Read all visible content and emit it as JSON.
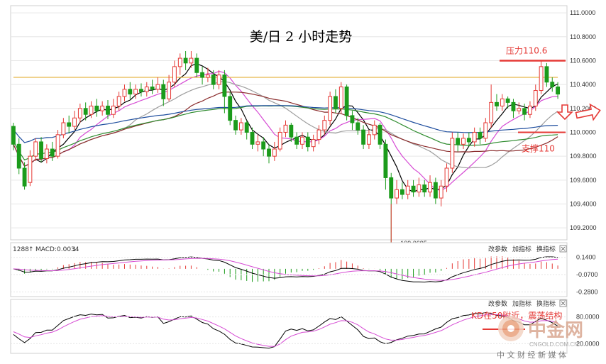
{
  "chart_data": [
    {
      "type": "candlestick",
      "title": "美/日 2 小时走势",
      "y_ticks": [
        "111.0000",
        "110.8000",
        "110.6000",
        "110.4000",
        "110.2000",
        "110.0000",
        "109.8000",
        "109.6000",
        "109.4000",
        "109.2000"
      ],
      "ylim": [
        109.1,
        111.06
      ],
      "low_label": "109.0695",
      "annotations": {
        "resistance": {
          "text": "压力110.6",
          "value": 110.6,
          "color": "#e53935"
        },
        "support": {
          "text": "支撑110",
          "value": 110.0,
          "color": "#e53935"
        }
      },
      "candles": [
        [
          110.05,
          109.9,
          110.08,
          109.85
        ],
        [
          109.9,
          109.7,
          109.95,
          109.65
        ],
        [
          109.7,
          109.55,
          109.75,
          109.52
        ],
        [
          109.58,
          109.8,
          109.85,
          109.55
        ],
        [
          109.8,
          109.92,
          109.95,
          109.76
        ],
        [
          109.92,
          109.78,
          109.96,
          109.75
        ],
        [
          109.78,
          109.86,
          109.9,
          109.74
        ],
        [
          109.86,
          109.8,
          109.92,
          109.76
        ],
        [
          109.8,
          109.98,
          110.02,
          109.78
        ],
        [
          109.98,
          110.08,
          110.12,
          109.95
        ],
        [
          110.08,
          110.05,
          110.14,
          109.99
        ],
        [
          110.05,
          110.12,
          110.18,
          110.02
        ],
        [
          110.12,
          110.2,
          110.24,
          110.08
        ],
        [
          110.2,
          110.15,
          110.25,
          110.1
        ],
        [
          110.15,
          110.22,
          110.26,
          110.12
        ],
        [
          110.22,
          110.18,
          110.28,
          110.13
        ],
        [
          110.18,
          110.22,
          110.26,
          110.14
        ],
        [
          110.22,
          110.15,
          110.27,
          110.11
        ],
        [
          110.15,
          110.22,
          110.28,
          110.12
        ],
        [
          110.22,
          110.3,
          110.34,
          110.18
        ],
        [
          110.3,
          110.36,
          110.4,
          110.26
        ],
        [
          110.36,
          110.32,
          110.42,
          110.28
        ],
        [
          110.32,
          110.36,
          110.4,
          110.28
        ],
        [
          110.36,
          110.34,
          110.41,
          110.3
        ],
        [
          110.34,
          110.38,
          110.42,
          110.3
        ],
        [
          110.38,
          110.36,
          110.44,
          110.32
        ],
        [
          110.36,
          110.4,
          110.46,
          110.33
        ],
        [
          110.4,
          110.28,
          110.44,
          110.22
        ],
        [
          110.28,
          110.42,
          110.48,
          110.26
        ],
        [
          110.42,
          110.55,
          110.6,
          110.38
        ],
        [
          110.55,
          110.62,
          110.66,
          110.48
        ],
        [
          110.62,
          110.58,
          110.68,
          110.52
        ],
        [
          110.58,
          110.62,
          110.68,
          110.54
        ],
        [
          110.62,
          110.5,
          110.66,
          110.46
        ],
        [
          110.5,
          110.46,
          110.55,
          110.4
        ],
        [
          110.46,
          110.48,
          110.54,
          110.42
        ],
        [
          110.48,
          110.4,
          110.52,
          110.36
        ],
        [
          110.4,
          110.48,
          110.52,
          110.36
        ],
        [
          110.48,
          110.3,
          110.52,
          110.16
        ],
        [
          110.3,
          110.1,
          110.34,
          110.06
        ],
        [
          110.1,
          110.02,
          110.14,
          109.98
        ],
        [
          110.02,
          110.08,
          110.12,
          109.98
        ],
        [
          110.08,
          110.0,
          110.1,
          109.94
        ],
        [
          110.0,
          109.9,
          110.04,
          109.86
        ],
        [
          109.9,
          109.92,
          109.98,
          109.84
        ],
        [
          109.92,
          109.86,
          109.96,
          109.8
        ],
        [
          109.86,
          109.8,
          109.9,
          109.74
        ],
        [
          109.8,
          109.86,
          109.92,
          109.76
        ],
        [
          109.86,
          110.0,
          110.04,
          109.84
        ],
        [
          110.0,
          110.06,
          110.1,
          109.96
        ],
        [
          110.06,
          109.96,
          110.08,
          109.92
        ],
        [
          109.96,
          109.9,
          110.0,
          109.86
        ],
        [
          109.9,
          109.96,
          110.0,
          109.86
        ],
        [
          109.96,
          109.88,
          110.0,
          109.84
        ],
        [
          109.88,
          109.94,
          109.98,
          109.84
        ],
        [
          109.94,
          110.02,
          110.06,
          109.9
        ],
        [
          110.02,
          110.1,
          110.14,
          109.98
        ],
        [
          110.1,
          110.3,
          110.34,
          110.06
        ],
        [
          110.3,
          110.2,
          110.36,
          110.16
        ],
        [
          110.2,
          110.38,
          110.42,
          110.16
        ],
        [
          110.38,
          110.14,
          110.4,
          110.1
        ],
        [
          110.14,
          110.08,
          110.18,
          110.02
        ],
        [
          110.08,
          110.02,
          110.12,
          109.98
        ],
        [
          110.02,
          109.9,
          110.06,
          109.86
        ],
        [
          109.9,
          109.98,
          110.02,
          109.86
        ],
        [
          109.98,
          110.06,
          110.1,
          109.94
        ],
        [
          110.06,
          109.9,
          110.08,
          109.86
        ],
        [
          109.9,
          109.62,
          109.94,
          109.52
        ],
        [
          109.62,
          109.45,
          109.66,
          109.07
        ],
        [
          109.45,
          109.52,
          109.6,
          109.4
        ],
        [
          109.52,
          109.48,
          109.58,
          109.44
        ],
        [
          109.48,
          109.55,
          109.6,
          109.44
        ],
        [
          109.55,
          109.5,
          109.6,
          109.46
        ],
        [
          109.5,
          109.56,
          109.62,
          109.46
        ],
        [
          109.56,
          109.5,
          109.6,
          109.46
        ],
        [
          109.5,
          109.58,
          109.64,
          109.46
        ],
        [
          109.58,
          109.45,
          109.62,
          109.4
        ],
        [
          109.45,
          109.55,
          109.6,
          109.38
        ],
        [
          109.55,
          109.7,
          109.74,
          109.5
        ],
        [
          109.7,
          109.95,
          110.0,
          109.66
        ],
        [
          109.95,
          109.9,
          110.0,
          109.84
        ],
        [
          109.9,
          109.95,
          109.99,
          109.86
        ],
        [
          109.95,
          109.92,
          110.0,
          109.88
        ],
        [
          109.92,
          110.0,
          110.04,
          109.88
        ],
        [
          110.0,
          109.95,
          110.04,
          109.9
        ],
        [
          109.95,
          110.08,
          110.12,
          109.92
        ],
        [
          110.08,
          110.25,
          110.4,
          110.04
        ],
        [
          110.25,
          110.22,
          110.32,
          110.18
        ],
        [
          110.22,
          110.28,
          110.32,
          110.18
        ],
        [
          110.28,
          110.25,
          110.3,
          110.2
        ],
        [
          110.25,
          110.18,
          110.28,
          110.12
        ],
        [
          110.18,
          110.2,
          110.25,
          110.15
        ],
        [
          110.2,
          110.15,
          110.24,
          110.1
        ],
        [
          110.15,
          110.22,
          110.26,
          110.12
        ],
        [
          110.22,
          110.35,
          110.4,
          110.18
        ],
        [
          110.35,
          110.55,
          110.6,
          110.32
        ],
        [
          110.55,
          110.42,
          110.58,
          110.38
        ],
        [
          110.42,
          110.38,
          110.46,
          110.34
        ],
        [
          110.38,
          110.32,
          110.42,
          110.28
        ]
      ],
      "ma_lines": [
        {
          "period": 5,
          "color": "#000000"
        },
        {
          "period": 10,
          "color": "#d64bd4"
        },
        {
          "period": 20,
          "color": "#9e9e9e"
        },
        {
          "period": 30,
          "color": "#8b2c2c"
        },
        {
          "period": 60,
          "color": "#2e8b2e"
        },
        {
          "period": 120,
          "color": "#1f4e9e"
        },
        {
          "period": 250,
          "color": "#e8b84a"
        }
      ]
    },
    {
      "type": "macd",
      "header_left": "1288",
      "header_label": "MACD:0.0034",
      "ticks": [
        "0.1400",
        "-0.0700",
        "-0.2800"
      ],
      "ylim": [
        -0.32,
        0.18
      ],
      "menu": [
        "改参数",
        "加指标",
        "换指标"
      ]
    },
    {
      "type": "kd",
      "ticks": [
        "80.0000",
        "20.0000"
      ],
      "ylim": [
        0,
        100
      ],
      "annotation": "KD在50附近，震荡结构",
      "menu": [
        "改参数",
        "加指标",
        "换指标"
      ]
    }
  ],
  "watermark": {
    "brand": "中金网",
    "domain": "CNGOLD.COM.CN",
    "tagline": "中 文 财 经 新 媒 体"
  },
  "colors": {
    "up": "#e53935",
    "down": "#1b9b1b",
    "grid": "#e6e6e6",
    "annotation": "#e53935"
  }
}
